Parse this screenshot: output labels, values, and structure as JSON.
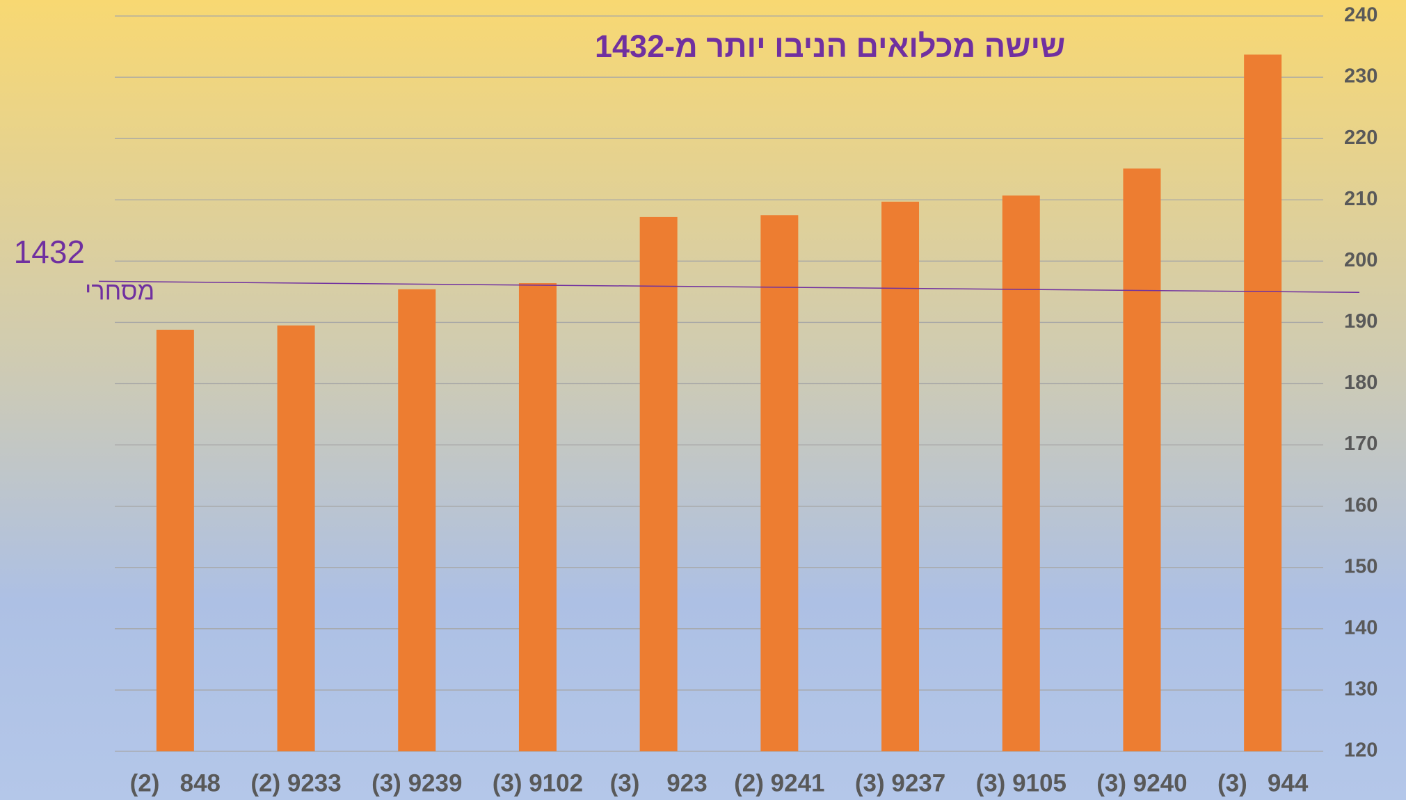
{
  "chart_data": {
    "type": "bar",
    "title": "שישה מכלואים הניבו יותר מ-1432",
    "categories": [
      "(2)   848",
      "(2) 9233",
      "(3) 9239",
      "(3) 9102",
      "(3)    923",
      "(2) 9241",
      "(3) 9237",
      "(3) 9105",
      "(3) 9240",
      "(3)   944"
    ],
    "values": [
      188.8,
      189.5,
      195.4,
      196.4,
      207.2,
      207.5,
      209.7,
      210.7,
      215.1,
      233.7
    ],
    "color": "#ed7d31",
    "ylim": [
      120,
      240
    ],
    "yticks": [
      120,
      130,
      140,
      150,
      160,
      170,
      180,
      190,
      200,
      210,
      220,
      230,
      240
    ],
    "grid": true,
    "y_axis_side": "right",
    "reference_line": {
      "label": "1432",
      "sublabel": "מסחרי",
      "start": 196.7,
      "end": 194.9,
      "color": "#7030a0"
    }
  }
}
